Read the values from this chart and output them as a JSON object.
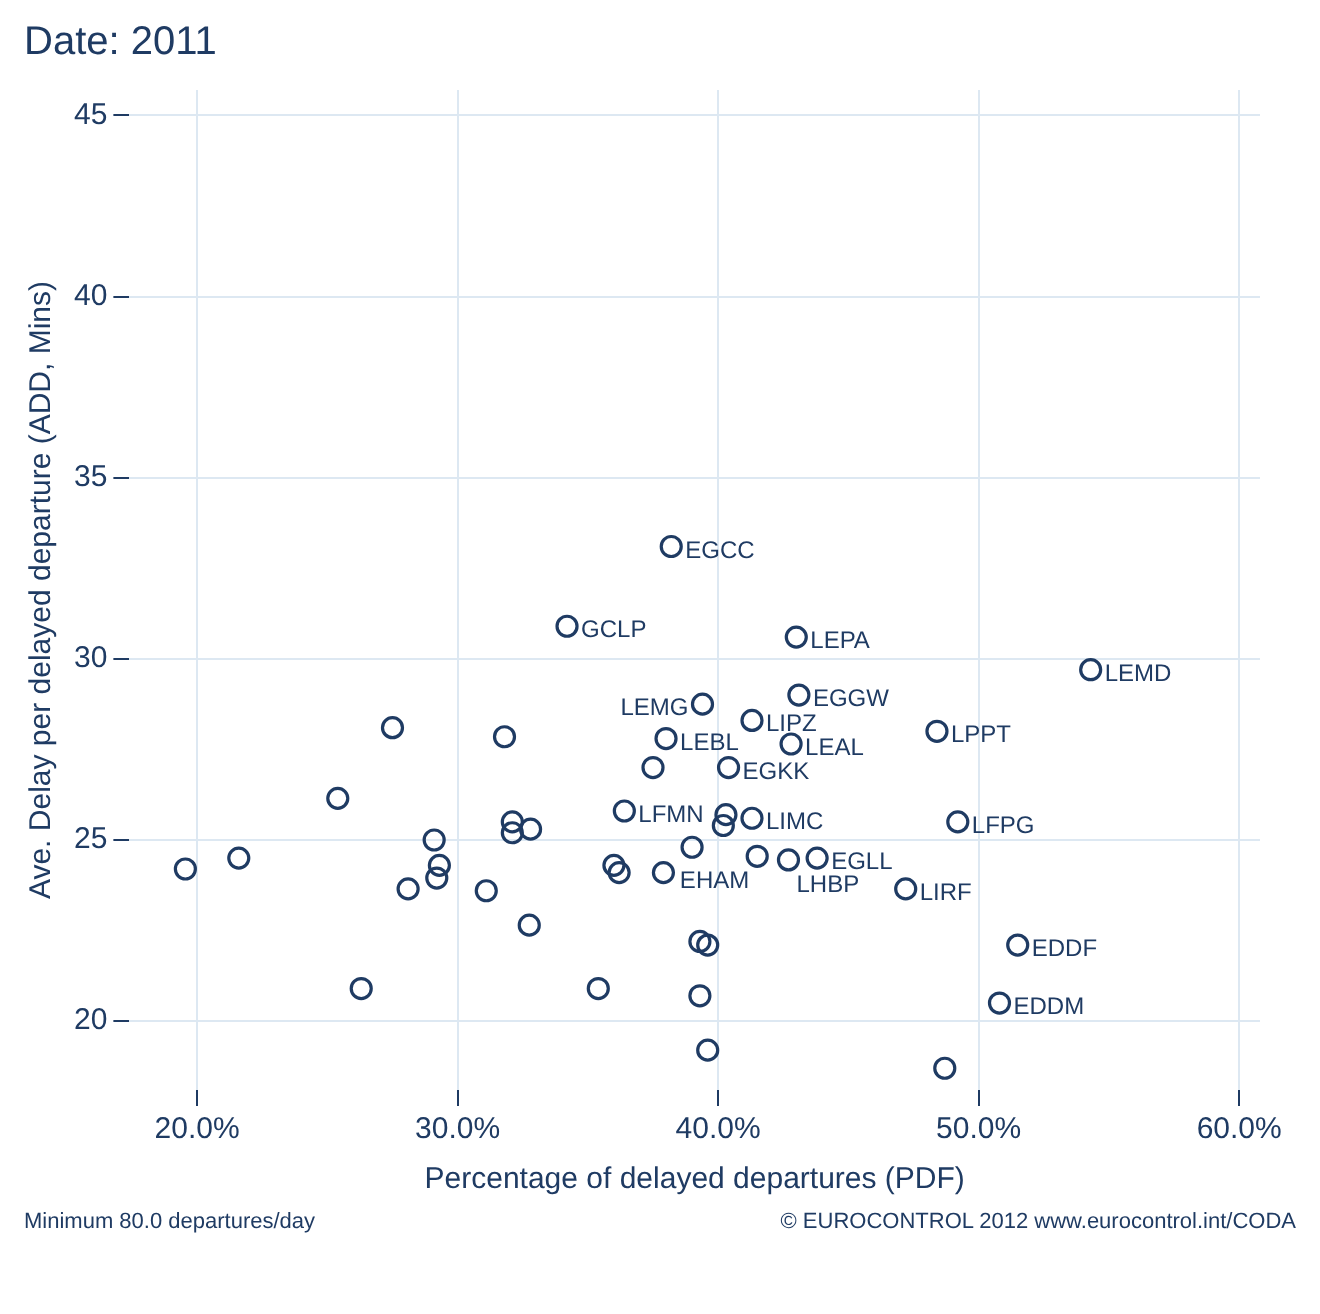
{
  "chart_data": {
    "type": "scatter",
    "title": "Date: 2011",
    "xlabel": "Percentage of delayed departures (PDF)",
    "ylabel": "Ave. Delay per delayed departure (ADD, Mins)",
    "x": [
      38.2,
      43.0,
      54.3,
      39.4,
      43.1,
      41.3,
      38.0,
      42.8,
      48.4,
      37.5,
      40.4,
      36.4,
      41.3,
      40.3,
      40.2,
      49.2,
      39.0,
      41.5,
      42.7,
      43.8,
      47.2,
      51.5,
      50.8,
      48.7,
      39.3,
      39.6,
      39.3,
      39.6,
      35.4,
      36.0,
      36.2,
      37.9,
      34.2,
      27.5,
      31.8,
      25.4,
      29.1,
      19.55,
      21.6,
      29.3,
      29.2,
      28.1,
      31.1,
      32.1,
      32.1,
      32.8,
      32.75,
      26.3
    ],
    "values": [
      33.1,
      30.6,
      29.7,
      28.75,
      29.0,
      28.3,
      27.8,
      27.65,
      28.0,
      27.0,
      27.0,
      25.8,
      25.6,
      25.7,
      25.4,
      25.5,
      24.8,
      24.55,
      24.45,
      24.5,
      23.65,
      22.1,
      20.5,
      18.7,
      22.2,
      22.1,
      20.7,
      19.2,
      20.9,
      24.3,
      24.1,
      24.1,
      30.9,
      28.1,
      27.85,
      26.15,
      25.0,
      24.2,
      24.5,
      24.3,
      23.95,
      23.65,
      23.6,
      25.5,
      25.2,
      25.3,
      22.65,
      20.9
    ],
    "color": "#1f3b63",
    "marker": "circle",
    "grid": true,
    "legend": false,
    "xlim": [
      17.4,
      60.8
    ],
    "ylim": [
      18.1,
      45.7
    ],
    "xticks": [
      {
        "value": 20,
        "label": "20.0%"
      },
      {
        "value": 30,
        "label": "30.0%"
      },
      {
        "value": 40,
        "label": "40.0%"
      },
      {
        "value": 50,
        "label": "50.0%"
      },
      {
        "value": 60,
        "label": "60.0%"
      }
    ],
    "yticks": [
      20,
      25,
      30,
      35,
      40,
      45
    ],
    "annotations": [
      {
        "text": "EGCC",
        "x": 38.2,
        "y": 33.1
      },
      {
        "text": "GCLP",
        "x": 34.2,
        "y": 30.9
      },
      {
        "text": "LEPA",
        "x": 43.0,
        "y": 30.6
      },
      {
        "text": "LEMD",
        "x": 54.3,
        "y": 29.7
      },
      {
        "text": "LEMG",
        "x": 39.4,
        "y": 28.75
      },
      {
        "text": "EGGW",
        "x": 43.1,
        "y": 29.0
      },
      {
        "text": "LIPZ",
        "x": 41.3,
        "y": 28.3
      },
      {
        "text": "LEBL",
        "x": 38.0,
        "y": 27.8
      },
      {
        "text": "LEAL",
        "x": 42.8,
        "y": 27.65
      },
      {
        "text": "LPPT",
        "x": 48.4,
        "y": 28.0
      },
      {
        "text": "EGKK",
        "x": 40.4,
        "y": 27.0
      },
      {
        "text": "LFMN",
        "x": 36.4,
        "y": 25.8
      },
      {
        "text": "LIMC",
        "x": 41.3,
        "y": 25.6
      },
      {
        "text": "LFPG",
        "x": 49.2,
        "y": 25.5
      },
      {
        "text": "EHAM",
        "x": 41.5,
        "y": 24.55
      },
      {
        "text": "LHBP",
        "x": 42.7,
        "y": 24.45
      },
      {
        "text": "EGLL",
        "x": 43.8,
        "y": 24.5
      },
      {
        "text": "LIRF",
        "x": 47.2,
        "y": 23.65
      },
      {
        "text": "EDDF",
        "x": 51.5,
        "y": 22.1
      },
      {
        "text": "EDDM",
        "x": 50.8,
        "y": 20.5
      },
      "Minimum 80.0 departures/day",
      "© EUROCONTROL 2012 www.eurocontrol.int/CODA"
    ]
  }
}
